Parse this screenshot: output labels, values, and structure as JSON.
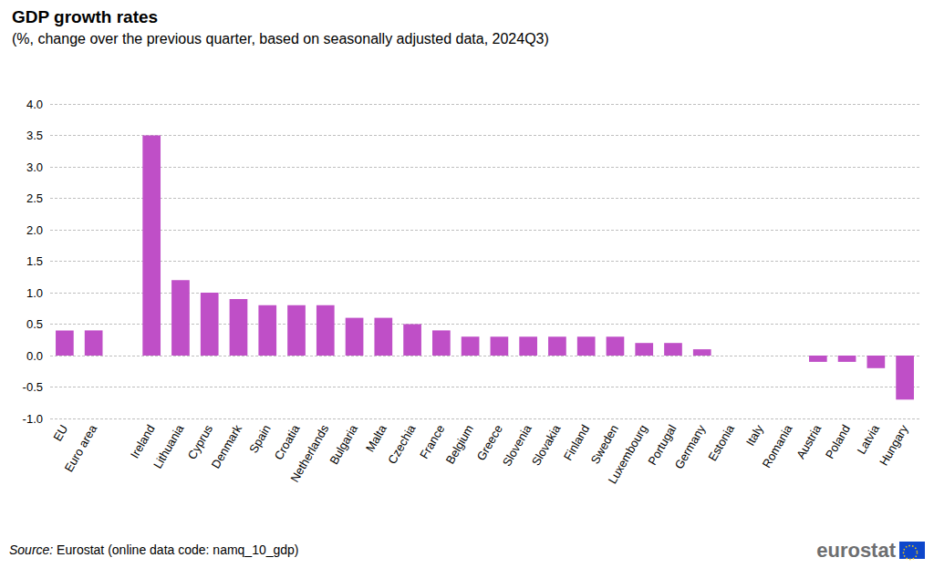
{
  "chart_data": {
    "type": "bar",
    "title": "GDP growth rates",
    "subtitle": "(%, change over the previous quarter, based on seasonally adjusted data, 2024Q3)",
    "source": "Source: Eurostat (online data code: namq_10_gdp)",
    "logo_text": "eurostat",
    "categories": [
      "EU",
      "Euro area",
      null,
      "Ireland",
      "Lithuania",
      "Cyprus",
      "Denmark",
      "Spain",
      "Croatia",
      "Netherlands",
      "Bulgaria",
      "Malta",
      "Czechia",
      "France",
      "Belgium",
      "Greece",
      "Slovenia",
      "Slovakia",
      "Finland",
      "Sweden",
      "Luxembourg",
      "Portugal",
      "Germany",
      "Estonia",
      "Italy",
      "Romania",
      "Austria",
      "Poland",
      "Latvia",
      "Hungary"
    ],
    "values": [
      0.4,
      0.4,
      null,
      3.5,
      1.2,
      1.0,
      0.9,
      0.8,
      0.8,
      0.8,
      0.6,
      0.6,
      0.5,
      0.4,
      0.3,
      0.3,
      0.3,
      0.3,
      0.3,
      0.3,
      0.2,
      0.2,
      0.1,
      0.0,
      0.0,
      0.0,
      -0.1,
      -0.1,
      -0.2,
      -0.7
    ],
    "color": "#bf4fc7",
    "ylim": [
      -1,
      4
    ],
    "yticks": [
      {
        "value": -1,
        "label": "-1.0"
      },
      -0.5,
      {
        "value": 0,
        "label": "0.0"
      },
      0.5,
      {
        "value": 1,
        "label": "1.0"
      },
      1.5,
      {
        "value": 2,
        "label": "2.0"
      },
      2.5,
      {
        "value": 3,
        "label": "3.0"
      },
      3.5,
      {
        "value": 4,
        "label": "4.0"
      }
    ],
    "grid": true
  }
}
